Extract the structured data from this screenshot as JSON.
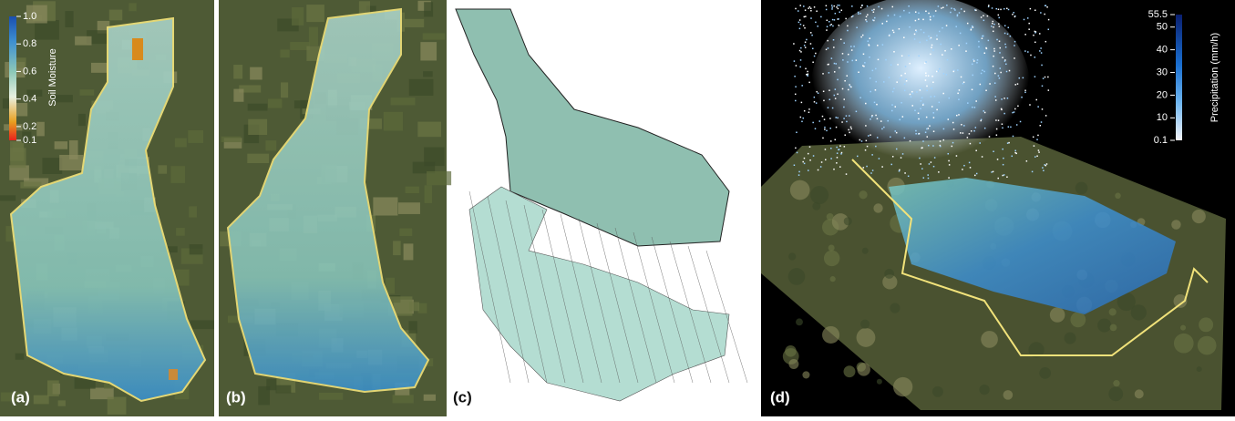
{
  "panels": [
    {
      "label": "(a)"
    },
    {
      "label": "(b)"
    },
    {
      "label": "(c)"
    },
    {
      "label": "(d)"
    }
  ],
  "soil_colorbar": {
    "title": "Soil Moisture",
    "range": [
      0.1,
      1.0
    ],
    "ticks": [
      {
        "value": 1,
        "label": "1.0"
      },
      0.8,
      0.6,
      0.4,
      0.2,
      0.1
    ]
  },
  "precip_colorbar": {
    "title": "Precipitation (mm/h)",
    "range": [
      0.1,
      55.5
    ],
    "ticks": [
      55.5,
      50,
      40,
      30,
      20,
      10,
      0.1
    ]
  }
}
